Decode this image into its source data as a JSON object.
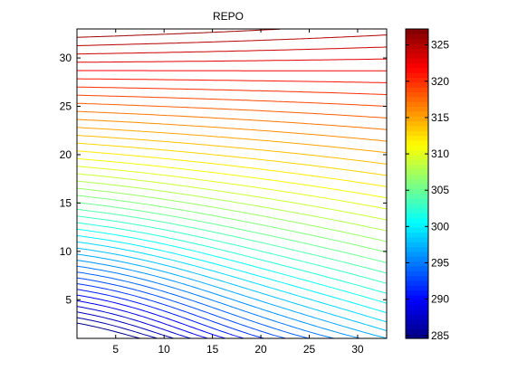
{
  "chart_data": {
    "type": "contour",
    "title": "REPO",
    "xlabel": "",
    "ylabel": "",
    "xlim": [
      1,
      33
    ],
    "ylim": [
      1,
      33
    ],
    "x_ticks": [
      5,
      10,
      15,
      20,
      25,
      30
    ],
    "y_ticks": [
      5,
      10,
      15,
      20,
      25,
      30
    ],
    "colorbar": {
      "range": [
        284.6,
        327.2
      ],
      "ticks": [
        285,
        290,
        295,
        300,
        305,
        310,
        315,
        320,
        325
      ],
      "colormap": "jet"
    },
    "contour_levels": {
      "start": 285,
      "step": 1,
      "count": 43
    },
    "field_model": {
      "description_values_at_corners_estimated": true,
      "top_left": 327,
      "top_right": 325.5,
      "bottom_left": 286,
      "bottom_right": 297
    },
    "grid": false
  }
}
